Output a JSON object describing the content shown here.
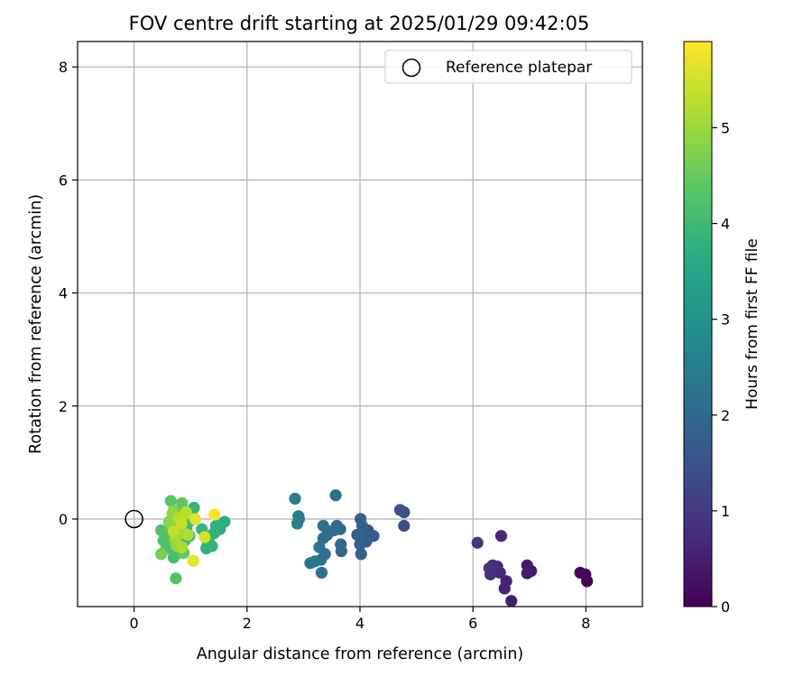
{
  "chart_data": {
    "type": "scatter",
    "title": "FOV centre drift starting at 2025/01/29 09:42:05",
    "xlabel": "Angular distance from reference (arcmin)",
    "ylabel": "Rotation from reference (arcmin)",
    "xlim": [
      -1,
      9
    ],
    "ylim": [
      -1.55,
      8.45
    ],
    "xticks": [
      "0",
      "2",
      "4",
      "6",
      "8"
    ],
    "yticks": [
      "0",
      "2",
      "4",
      "6",
      "8"
    ],
    "xtick_values": [
      0,
      2,
      4,
      6,
      8
    ],
    "ytick_values": [
      0,
      2,
      4,
      6,
      8
    ],
    "grid": true,
    "legend": {
      "placement": "top-right",
      "entries": [
        "Reference platepar"
      ]
    },
    "reference_point": {
      "x": 0,
      "y": 0
    },
    "colorbar": {
      "label": "Hours from first FF file",
      "colormap": "viridis",
      "range": [
        0,
        5.9
      ],
      "ticks": [
        "0",
        "1",
        "2",
        "3",
        "4",
        "5"
      ],
      "tick_values": [
        0,
        1,
        2,
        3,
        4,
        5
      ]
    },
    "points": [
      {
        "x": 8.02,
        "y": -1.1,
        "h": 0.02
      },
      {
        "x": 7.99,
        "y": -0.98,
        "h": 0.06
      },
      {
        "x": 7.9,
        "y": -0.95,
        "h": 0.1
      },
      {
        "x": 7.03,
        "y": -0.92,
        "h": 0.35
      },
      {
        "x": 6.96,
        "y": -0.82,
        "h": 0.4
      },
      {
        "x": 6.96,
        "y": -0.96,
        "h": 0.42
      },
      {
        "x": 6.68,
        "y": -1.45,
        "h": 0.5
      },
      {
        "x": 6.59,
        "y": -1.1,
        "h": 0.55
      },
      {
        "x": 6.56,
        "y": -1.23,
        "h": 0.58
      },
      {
        "x": 6.5,
        "y": -0.3,
        "h": 0.65
      },
      {
        "x": 6.48,
        "y": -0.95,
        "h": 0.68
      },
      {
        "x": 6.43,
        "y": -0.84,
        "h": 0.72
      },
      {
        "x": 6.37,
        "y": -0.93,
        "h": 0.76
      },
      {
        "x": 6.35,
        "y": -0.82,
        "h": 0.8
      },
      {
        "x": 6.31,
        "y": -0.98,
        "h": 0.84
      },
      {
        "x": 6.29,
        "y": -0.87,
        "h": 0.88
      },
      {
        "x": 6.08,
        "y": -0.42,
        "h": 0.95
      },
      {
        "x": 4.78,
        "y": -0.12,
        "h": 1.4
      },
      {
        "x": 4.78,
        "y": 0.12,
        "h": 1.45
      },
      {
        "x": 4.71,
        "y": 0.16,
        "h": 1.5
      },
      {
        "x": 4.24,
        "y": -0.3,
        "h": 1.6
      },
      {
        "x": 4.14,
        "y": -0.2,
        "h": 1.65
      },
      {
        "x": 4.11,
        "y": -0.4,
        "h": 1.7
      },
      {
        "x": 4.07,
        "y": -0.33,
        "h": 1.72
      },
      {
        "x": 4.04,
        "y": -0.12,
        "h": 1.75
      },
      {
        "x": 4.02,
        "y": -0.62,
        "h": 1.78
      },
      {
        "x": 4.01,
        "y": 0.0,
        "h": 1.8
      },
      {
        "x": 4.0,
        "y": -0.45,
        "h": 1.82
      },
      {
        "x": 3.95,
        "y": -0.28,
        "h": 1.85
      },
      {
        "x": 3.67,
        "y": -0.57,
        "h": 1.95
      },
      {
        "x": 3.66,
        "y": -0.45,
        "h": 1.98
      },
      {
        "x": 3.65,
        "y": -0.18,
        "h": 2.0
      },
      {
        "x": 3.59,
        "y": -0.12,
        "h": 2.02
      },
      {
        "x": 3.57,
        "y": 0.42,
        "h": 2.05
      },
      {
        "x": 3.54,
        "y": -0.2,
        "h": 2.08
      },
      {
        "x": 3.46,
        "y": -0.22,
        "h": 2.1
      },
      {
        "x": 3.42,
        "y": -0.28,
        "h": 2.12
      },
      {
        "x": 3.38,
        "y": -0.62,
        "h": 2.15
      },
      {
        "x": 3.35,
        "y": -0.34,
        "h": 2.18
      },
      {
        "x": 3.35,
        "y": -0.12,
        "h": 2.2
      },
      {
        "x": 3.32,
        "y": -0.95,
        "h": 2.22
      },
      {
        "x": 3.31,
        "y": -0.72,
        "h": 2.25
      },
      {
        "x": 3.28,
        "y": -0.5,
        "h": 2.28
      },
      {
        "x": 3.2,
        "y": -0.75,
        "h": 2.3
      },
      {
        "x": 3.12,
        "y": -0.78,
        "h": 2.33
      },
      {
        "x": 2.92,
        "y": 0.0,
        "h": 2.45
      },
      {
        "x": 2.91,
        "y": 0.05,
        "h": 2.48
      },
      {
        "x": 2.89,
        "y": -0.08,
        "h": 2.5
      },
      {
        "x": 2.85,
        "y": 0.36,
        "h": 2.55
      },
      {
        "x": 1.6,
        "y": -0.05,
        "h": 3.7
      },
      {
        "x": 1.52,
        "y": -0.18,
        "h": 3.72
      },
      {
        "x": 1.45,
        "y": -0.12,
        "h": 3.75
      },
      {
        "x": 1.42,
        "y": -0.25,
        "h": 3.78
      },
      {
        "x": 1.38,
        "y": -0.48,
        "h": 3.8
      },
      {
        "x": 1.35,
        "y": -0.3,
        "h": 3.83
      },
      {
        "x": 1.3,
        "y": -0.4,
        "h": 3.86
      },
      {
        "x": 1.28,
        "y": -0.52,
        "h": 3.88
      },
      {
        "x": 1.2,
        "y": -0.18,
        "h": 3.9
      },
      {
        "x": 1.06,
        "y": 0.2,
        "h": 3.92
      },
      {
        "x": 1.02,
        "y": 0.12,
        "h": 3.94
      },
      {
        "x": 0.98,
        "y": -0.3,
        "h": 3.96
      },
      {
        "x": 0.97,
        "y": -0.05,
        "h": 3.98
      },
      {
        "x": 0.93,
        "y": -0.18,
        "h": 4.0
      },
      {
        "x": 0.9,
        "y": -0.38,
        "h": 4.02
      },
      {
        "x": 0.84,
        "y": -0.55,
        "h": 4.04
      },
      {
        "x": 0.82,
        "y": -0.22,
        "h": 4.06
      },
      {
        "x": 0.79,
        "y": 0.1,
        "h": 4.08
      },
      {
        "x": 0.75,
        "y": -0.62,
        "h": 4.1
      },
      {
        "x": 0.72,
        "y": -0.3,
        "h": 4.12
      },
      {
        "x": 0.7,
        "y": -0.68,
        "h": 4.14
      },
      {
        "x": 0.68,
        "y": 0.0,
        "h": 4.16
      },
      {
        "x": 0.66,
        "y": -0.45,
        "h": 4.18
      },
      {
        "x": 0.62,
        "y": -0.22,
        "h": 4.2
      },
      {
        "x": 0.57,
        "y": -0.52,
        "h": 4.22
      },
      {
        "x": 0.52,
        "y": -0.38,
        "h": 4.24
      },
      {
        "x": 0.48,
        "y": -0.2,
        "h": 4.26
      },
      {
        "x": 0.74,
        "y": -1.05,
        "h": 4.3
      },
      {
        "x": 0.65,
        "y": 0.32,
        "h": 4.35
      },
      {
        "x": 0.85,
        "y": 0.28,
        "h": 4.4
      },
      {
        "x": 0.78,
        "y": -0.12,
        "h": 4.45
      },
      {
        "x": 0.88,
        "y": -0.6,
        "h": 4.5
      },
      {
        "x": 0.72,
        "y": -0.4,
        "h": 4.55
      },
      {
        "x": 0.65,
        "y": -0.1,
        "h": 4.6
      },
      {
        "x": 0.48,
        "y": -0.62,
        "h": 4.65
      },
      {
        "x": 0.8,
        "y": 0.05,
        "h": 4.7
      },
      {
        "x": 0.7,
        "y": 0.15,
        "h": 4.75
      },
      {
        "x": 0.88,
        "y": -0.25,
        "h": 4.8
      },
      {
        "x": 0.62,
        "y": -0.05,
        "h": 4.85
      },
      {
        "x": 0.76,
        "y": -0.48,
        "h": 4.9
      },
      {
        "x": 0.68,
        "y": 0.1,
        "h": 4.95
      },
      {
        "x": 0.9,
        "y": 0.08,
        "h": 5.0
      },
      {
        "x": 0.82,
        "y": -0.18,
        "h": 5.05
      },
      {
        "x": 0.74,
        "y": -0.35,
        "h": 5.1
      },
      {
        "x": 0.85,
        "y": -0.5,
        "h": 5.15
      },
      {
        "x": 0.95,
        "y": -0.28,
        "h": 5.2
      },
      {
        "x": 0.78,
        "y": 0.02,
        "h": 5.25
      },
      {
        "x": 0.92,
        "y": 0.12,
        "h": 5.3
      },
      {
        "x": 0.7,
        "y": -0.22,
        "h": 5.35
      },
      {
        "x": 0.84,
        "y": -0.08,
        "h": 5.4
      },
      {
        "x": 1.25,
        "y": -0.32,
        "h": 5.5
      },
      {
        "x": 1.08,
        "y": 0.0,
        "h": 5.6
      },
      {
        "x": 1.05,
        "y": -0.74,
        "h": 5.7
      },
      {
        "x": 1.42,
        "y": 0.08,
        "h": 5.85
      }
    ]
  }
}
